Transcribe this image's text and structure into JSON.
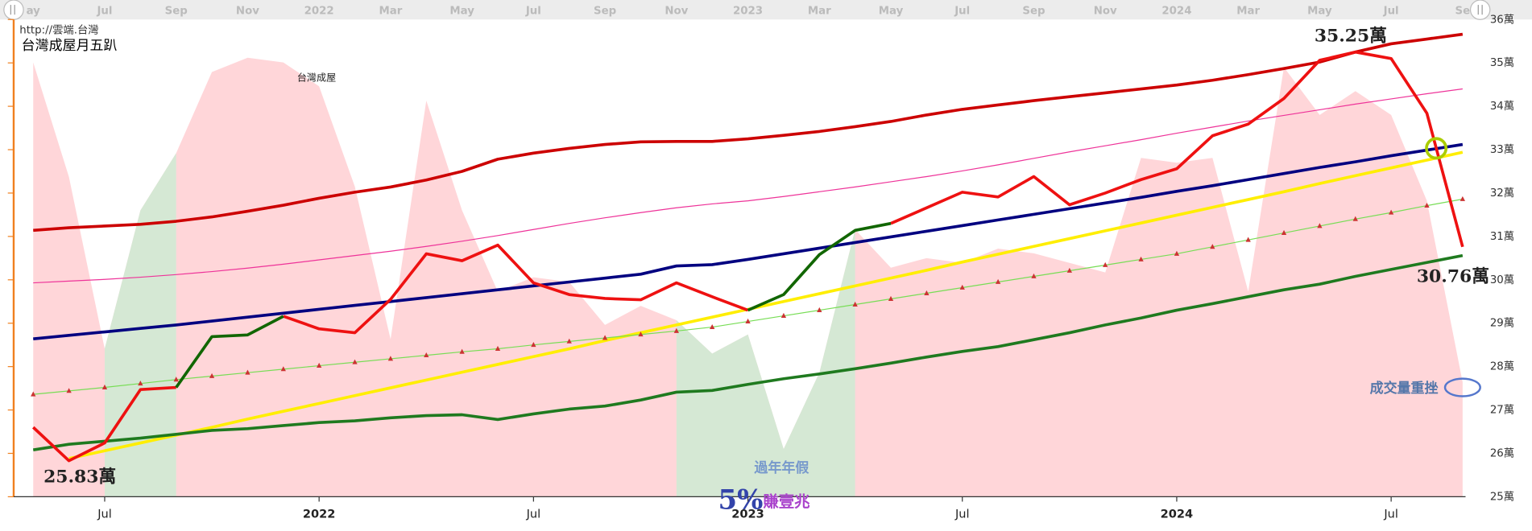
{
  "chart_data": {
    "type": "line",
    "source": "http://雲端.台灣",
    "title": "台灣成屋月五趴",
    "annotations": [
      "過年年假",
      "5%",
      "賺壹兆",
      "成交量重挫"
    ],
    "x": [
      "2021-05",
      "2021-06",
      "2021-07",
      "2021-08",
      "2021-09",
      "2021-10",
      "2021-11",
      "2021-12",
      "2022-01",
      "2022-02",
      "2022-03",
      "2022-04",
      "2022-05",
      "2022-06",
      "2022-07",
      "2022-08",
      "2022-09",
      "2022-10",
      "2022-11",
      "2022-12",
      "2023-01",
      "2023-02",
      "2023-03",
      "2023-04",
      "2023-05",
      "2023-06",
      "2023-07",
      "2023-08",
      "2023-09",
      "2023-10",
      "2023-11",
      "2023-12",
      "2024-01",
      "2024-02",
      "2024-03",
      "2024-04",
      "2024-05",
      "2024-06",
      "2024-07",
      "2024-08",
      "2024-09"
    ],
    "xticks": [
      {
        "value": "2021-07",
        "label": "Jul"
      },
      {
        "value": "2022-01",
        "label": "2022"
      },
      {
        "value": "2022-07",
        "label": "Jul"
      },
      {
        "value": "2023-01",
        "label": "2023"
      },
      {
        "value": "2023-07",
        "label": "Jul"
      },
      {
        "value": "2024-01",
        "label": "2024"
      },
      {
        "value": "2024-07",
        "label": "Jul"
      }
    ],
    "navigator_xticks": [
      {
        "value": "2021-05",
        "label": "ay"
      },
      {
        "value": "2021-07",
        "label": "Jul"
      },
      {
        "value": "2021-09",
        "label": "Sep"
      },
      {
        "value": "2021-11",
        "label": "Nov"
      },
      {
        "value": "2022-01",
        "label": "2022"
      },
      {
        "value": "2022-03",
        "label": "Mar"
      },
      {
        "value": "2022-05",
        "label": "May"
      },
      {
        "value": "2022-07",
        "label": "Jul"
      },
      {
        "value": "2022-09",
        "label": "Sep"
      },
      {
        "value": "2022-11",
        "label": "Nov"
      },
      {
        "value": "2023-01",
        "label": "2023"
      },
      {
        "value": "2023-03",
        "label": "Mar"
      },
      {
        "value": "2023-05",
        "label": "May"
      },
      {
        "value": "2023-07",
        "label": "Jul"
      },
      {
        "value": "2023-09",
        "label": "Sep"
      },
      {
        "value": "2023-11",
        "label": "Nov"
      },
      {
        "value": "2024-01",
        "label": "2024"
      },
      {
        "value": "2024-03",
        "label": "Mar"
      },
      {
        "value": "2024-05",
        "label": "May"
      },
      {
        "value": "2024-07",
        "label": "Jul"
      },
      {
        "value": "2024-09",
        "label": "Se"
      }
    ],
    "ylim": [
      25,
      36
    ],
    "yticks": [
      {
        "value": 25,
        "label": "25萬"
      },
      {
        "value": 26,
        "label": "26萬"
      },
      {
        "value": 27,
        "label": "27萬"
      },
      {
        "value": 28,
        "label": "28萬"
      },
      {
        "value": 29,
        "label": "29萬"
      },
      {
        "value": 30,
        "label": "30萬"
      },
      {
        "value": 31,
        "label": "31萬"
      },
      {
        "value": 32,
        "label": "32萬"
      },
      {
        "value": 33,
        "label": "33萬"
      },
      {
        "value": 34,
        "label": "34萬"
      },
      {
        "value": 35,
        "label": "35萬"
      },
      {
        "value": 36,
        "label": "36萬"
      }
    ],
    "y2lim": [
      0,
      100
    ],
    "grid": false,
    "series": [
      {
        "type": "area",
        "axis": "y2",
        "color": "#ffd6d9",
        "values": [
          91,
          67,
          31,
          60,
          72,
          89,
          92,
          91,
          86,
          65,
          33,
          83,
          60,
          43,
          46,
          45,
          36,
          40,
          37,
          30,
          34,
          10,
          26,
          56,
          48,
          50,
          49,
          52,
          51,
          49,
          47,
          71,
          70,
          71,
          43,
          90,
          80,
          85,
          80,
          62,
          24
        ]
      },
      {
        "type": "area",
        "axis": "y2",
        "color": "#d5e8d4",
        "values": [
          null,
          null,
          31,
          60,
          72,
          null,
          null,
          null,
          null,
          null,
          null,
          null,
          null,
          null,
          null,
          null,
          null,
          null,
          37,
          30,
          34,
          10,
          26,
          56,
          null,
          null,
          null,
          null,
          null,
          null,
          null,
          null,
          null,
          null,
          null,
          null,
          null,
          null,
          null,
          null,
          null
        ]
      },
      {
        "type": "line",
        "color": "#cc0000",
        "width": 3,
        "values": [
          31.14,
          31.2,
          31.24,
          31.28,
          31.35,
          31.45,
          31.58,
          31.72,
          31.88,
          32.02,
          32.14,
          32.3,
          32.5,
          32.78,
          32.92,
          33.03,
          33.12,
          33.18,
          33.19,
          33.19,
          33.25,
          33.33,
          33.42,
          33.53,
          33.65,
          33.8,
          33.93,
          34.03,
          34.13,
          34.22,
          34.31,
          34.4,
          34.49,
          34.6,
          34.73,
          34.87,
          35.02,
          35.25,
          35.44,
          35.55,
          35.66
        ]
      },
      {
        "type": "line",
        "color": "#ee3399",
        "width": 1,
        "values": [
          29.93,
          29.97,
          30.01,
          30.06,
          30.12,
          30.19,
          30.27,
          30.36,
          30.46,
          30.56,
          30.66,
          30.77,
          30.89,
          31.02,
          31.16,
          31.3,
          31.43,
          31.55,
          31.66,
          31.75,
          31.82,
          31.92,
          32.03,
          32.14,
          32.26,
          32.38,
          32.51,
          32.65,
          32.8,
          32.95,
          33.09,
          33.23,
          33.38,
          33.52,
          33.66,
          33.79,
          33.92,
          34.05,
          34.17,
          34.29,
          34.4
        ]
      },
      {
        "type": "line",
        "color": "#000080",
        "width": 3,
        "values": [
          28.64,
          28.72,
          28.8,
          28.88,
          28.96,
          29.05,
          29.14,
          29.23,
          29.32,
          29.41,
          29.5,
          29.59,
          29.68,
          29.77,
          29.86,
          29.95,
          30.04,
          30.13,
          30.32,
          30.35,
          30.47,
          30.6,
          30.73,
          30.86,
          30.99,
          31.12,
          31.25,
          31.38,
          31.51,
          31.64,
          31.77,
          31.9,
          32.04,
          32.17,
          32.31,
          32.45,
          32.59,
          32.72,
          32.86,
          32.99,
          33.12
        ]
      },
      {
        "type": "line",
        "color": "#ffee00",
        "width": 3,
        "values": [
          null,
          25.88,
          26.06,
          26.24,
          26.42,
          26.6,
          26.79,
          26.97,
          27.15,
          27.33,
          27.51,
          27.69,
          27.87,
          28.05,
          28.23,
          28.41,
          28.6,
          28.78,
          28.96,
          29.14,
          29.32,
          29.5,
          29.68,
          29.86,
          30.04,
          30.22,
          30.41,
          30.59,
          30.77,
          30.95,
          31.13,
          31.31,
          31.49,
          31.67,
          31.85,
          32.03,
          32.22,
          32.4,
          32.58,
          32.76,
          32.94
        ]
      },
      {
        "type": "line",
        "color": "#77dd55",
        "width": 1,
        "marker": "triangle",
        "marker_color": "#cc3333",
        "values": [
          27.36,
          27.44,
          27.52,
          27.61,
          27.7,
          27.78,
          27.86,
          27.94,
          28.02,
          28.1,
          28.18,
          28.26,
          28.34,
          28.41,
          28.5,
          28.58,
          28.66,
          28.74,
          28.82,
          28.91,
          29.04,
          29.17,
          29.3,
          29.43,
          29.56,
          29.69,
          29.82,
          29.95,
          30.08,
          30.21,
          30.34,
          30.47,
          30.6,
          30.76,
          30.92,
          31.08,
          31.24,
          31.4,
          31.55,
          31.71,
          31.86
        ]
      },
      {
        "type": "line",
        "color": "#1f7a1f",
        "width": 3,
        "values": [
          26.08,
          26.21,
          26.28,
          26.35,
          26.44,
          26.53,
          26.57,
          26.64,
          26.71,
          26.75,
          26.82,
          26.87,
          26.89,
          26.78,
          26.91,
          27.02,
          27.09,
          27.23,
          27.41,
          27.45,
          27.59,
          27.72,
          27.83,
          27.95,
          28.08,
          28.22,
          28.35,
          28.46,
          28.62,
          28.78,
          28.96,
          29.12,
          29.3,
          29.45,
          29.61,
          29.77,
          29.9,
          30.08,
          30.24,
          30.4,
          30.56
        ]
      },
      {
        "type": "line",
        "name": "台灣成屋",
        "color": "#ee1111",
        "width": 3,
        "values": [
          26.6,
          25.83,
          26.24,
          27.47,
          27.52,
          null,
          null,
          29.16,
          28.87,
          28.78,
          29.55,
          30.6,
          30.44,
          30.8,
          29.93,
          29.66,
          29.57,
          29.54,
          29.93,
          29.61,
          29.3,
          null,
          null,
          null,
          31.3,
          31.66,
          32.02,
          31.91,
          32.38,
          31.73,
          32.0,
          32.31,
          32.56,
          33.32,
          33.59,
          34.18,
          35.06,
          35.25,
          35.1,
          33.84,
          30.76
        ],
        "value_labels": [
          null,
          "25.83萬",
          null,
          null,
          null,
          null,
          null,
          null,
          null,
          null,
          null,
          null,
          null,
          null,
          null,
          null,
          null,
          null,
          null,
          null,
          null,
          null,
          null,
          null,
          null,
          null,
          null,
          null,
          null,
          null,
          null,
          null,
          null,
          null,
          null,
          null,
          null,
          "35.25萬",
          null,
          null,
          "30.76萬"
        ]
      },
      {
        "type": "line",
        "color": "#116600",
        "width": 3,
        "values": [
          null,
          null,
          null,
          null,
          27.52,
          28.69,
          28.73,
          29.16,
          null,
          null,
          null,
          null,
          null,
          null,
          null,
          null,
          null,
          null,
          null,
          null,
          29.3,
          29.66,
          30.58,
          31.14,
          31.3,
          null,
          null,
          null,
          null,
          null,
          null,
          null,
          null,
          null,
          null,
          null,
          null,
          null,
          null,
          null,
          null
        ]
      }
    ]
  }
}
